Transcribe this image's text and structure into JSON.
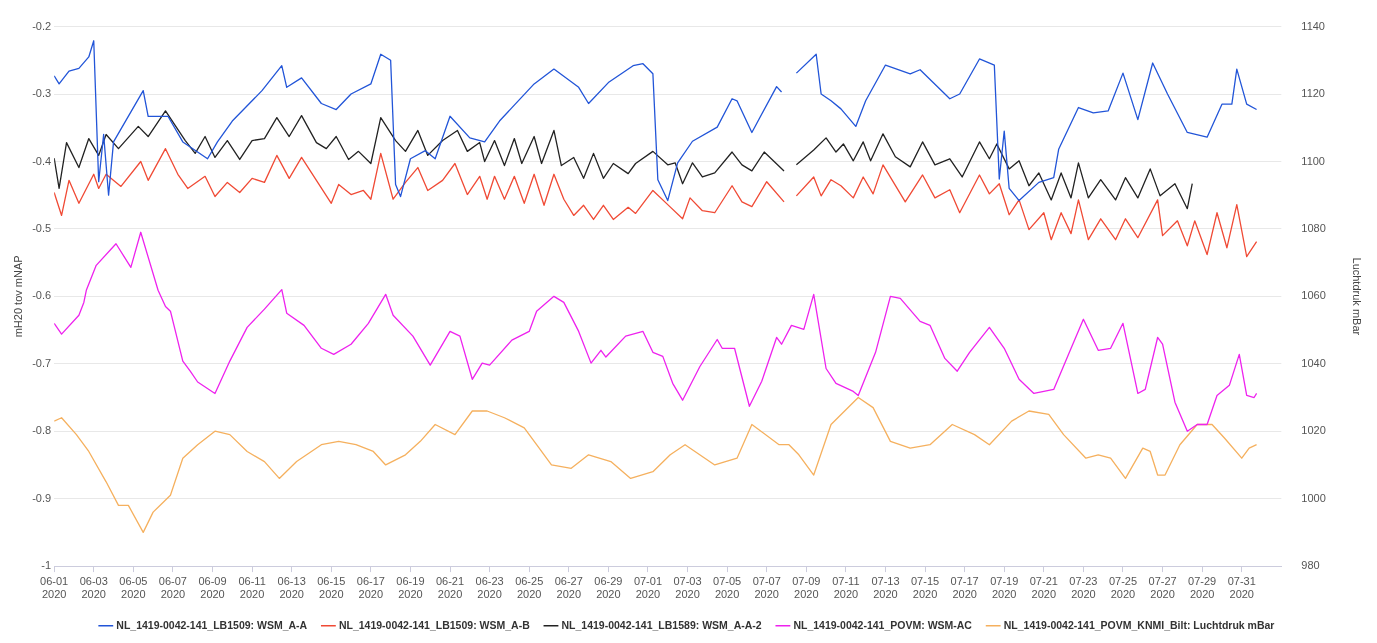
{
  "chart_data": {
    "type": "line",
    "ylabel": "mH20 tov mNAP",
    "y2label": "Luchtdruk mBar",
    "xlim": [
      "2020-06-01",
      "2020-08-02"
    ],
    "xticks": [
      {
        "value": "2020-06-01",
        "label": "06-01\n2020"
      },
      {
        "value": "2020-06-03",
        "label": "06-03\n2020"
      },
      {
        "value": "2020-06-05",
        "label": "06-05\n2020"
      },
      {
        "value": "2020-06-07",
        "label": "06-07\n2020"
      },
      {
        "value": "2020-06-09",
        "label": "06-09\n2020"
      },
      {
        "value": "2020-06-11",
        "label": "06-11\n2020"
      },
      {
        "value": "2020-06-13",
        "label": "06-13\n2020"
      },
      {
        "value": "2020-06-15",
        "label": "06-15\n2020"
      },
      {
        "value": "2020-06-17",
        "label": "06-17\n2020"
      },
      {
        "value": "2020-06-19",
        "label": "06-19\n2020"
      },
      {
        "value": "2020-06-21",
        "label": "06-21\n2020"
      },
      {
        "value": "2020-06-23",
        "label": "06-23\n2020"
      },
      {
        "value": "2020-06-25",
        "label": "06-25\n2020"
      },
      {
        "value": "2020-06-27",
        "label": "06-27\n2020"
      },
      {
        "value": "2020-06-29",
        "label": "06-29\n2020"
      },
      {
        "value": "2020-07-01",
        "label": "07-01\n2020"
      },
      {
        "value": "2020-07-03",
        "label": "07-03\n2020"
      },
      {
        "value": "2020-07-05",
        "label": "07-05\n2020"
      },
      {
        "value": "2020-07-07",
        "label": "07-07\n2020"
      },
      {
        "value": "2020-07-09",
        "label": "07-09\n2020"
      },
      {
        "value": "2020-07-11",
        "label": "07-11\n2020"
      },
      {
        "value": "2020-07-13",
        "label": "07-13\n2020"
      },
      {
        "value": "2020-07-15",
        "label": "07-15\n2020"
      },
      {
        "value": "2020-07-17",
        "label": "07-17\n2020"
      },
      {
        "value": "2020-07-19",
        "label": "07-19\n2020"
      },
      {
        "value": "2020-07-21",
        "label": "07-21\n2020"
      },
      {
        "value": "2020-07-23",
        "label": "07-23\n2020"
      },
      {
        "value": "2020-07-25",
        "label": "07-25\n2020"
      },
      {
        "value": "2020-07-27",
        "label": "07-27\n2020"
      },
      {
        "value": "2020-07-29",
        "label": "07-29\n2020"
      },
      {
        "value": "2020-07-31",
        "label": "07-31\n2020"
      }
    ],
    "ylim": [
      -1,
      -0.2
    ],
    "yticks": [
      -1,
      -0.9,
      -0.8,
      -0.7,
      -0.6,
      -0.5,
      -0.4,
      -0.3,
      -0.2
    ],
    "y2lim": [
      980,
      1140
    ],
    "y2ticks": [
      980,
      1000,
      1020,
      1040,
      1060,
      1080,
      1100,
      1120,
      1140
    ],
    "grid": "y",
    "legend": "bottom",
    "marker": "none",
    "line_style": "solid",
    "series": [
      {
        "name": "NL_1419-0042-141_LB1509: WSM_A-A",
        "color": "#2255d8",
        "x": [
          "2020-06-01T00:00",
          "2020-06-01T06:00",
          "2020-06-01T18:00",
          "2020-06-02T06:00",
          "2020-06-02T18:00",
          "2020-06-03T00:00",
          "2020-06-03T06:00",
          "2020-06-03T12:00",
          "2020-06-03T18:00",
          "2020-06-04T00:00",
          "2020-06-05T12:00",
          "2020-06-05T18:00",
          "2020-06-06T18:00",
          "2020-06-07T12:00",
          "2020-06-08T18:00",
          "2020-06-09T06:00",
          "2020-06-10T00:00",
          "2020-06-11T12:00",
          "2020-06-12T12:00",
          "2020-06-12T18:00",
          "2020-06-13T12:00",
          "2020-06-14T12:00",
          "2020-06-15T06:00",
          "2020-06-16T00:00",
          "2020-06-17T00:00",
          "2020-06-17T12:00",
          "2020-06-18T00:00",
          "2020-06-18T06:00",
          "2020-06-18T12:00",
          "2020-06-19T00:00",
          "2020-06-19T18:00",
          "2020-06-20T06:00",
          "2020-06-21T00:00",
          "2020-06-22T00:00",
          "2020-06-22T18:00",
          "2020-06-23T12:00",
          "2020-06-25T06:00",
          "2020-06-26T06:00",
          "2020-06-27T12:00",
          "2020-06-28T00:00",
          "2020-06-29T00:00",
          "2020-06-30T06:00",
          "2020-06-30T18:00",
          "2020-07-01T06:00",
          "2020-07-01T12:00",
          "2020-07-02T00:00",
          "2020-07-02T12:00",
          "2020-07-03T06:00",
          "2020-07-04T12:00",
          "2020-07-05T06:00",
          "2020-07-05T12:00",
          "2020-07-06T06:00",
          "2020-07-07T12:00",
          "2020-07-07T18:00",
          "2020-07-08T00:00",
          "2020-07-08T12:00",
          "2020-07-09T12:00",
          "2020-07-09T18:00",
          "2020-07-10T06:00",
          "2020-07-10T18:00",
          "2020-07-11T12:00",
          "2020-07-12T00:00",
          "2020-07-13T00:00",
          "2020-07-14T06:00",
          "2020-07-14T18:00",
          "2020-07-16T06:00",
          "2020-07-16T18:00",
          "2020-07-17T18:00",
          "2020-07-18T12:00",
          "2020-07-18T18:00",
          "2020-07-19T00:00",
          "2020-07-19T06:00",
          "2020-07-19T18:00",
          "2020-07-20T18:00",
          "2020-07-21T12:00",
          "2020-07-21T18:00",
          "2020-07-22T18:00",
          "2020-07-23T12:00",
          "2020-07-24T06:00",
          "2020-07-25T00:00",
          "2020-07-25T18:00",
          "2020-07-26T12:00",
          "2020-07-27T06:00",
          "2020-07-28T06:00",
          "2020-07-29T06:00",
          "2020-07-30T00:00",
          "2020-07-30T12:00",
          "2020-07-30T18:00",
          "2020-07-31T06:00",
          "2020-07-31T18:00"
        ],
        "values": [
          -0.273,
          -0.285,
          -0.266,
          -0.262,
          -0.245,
          -0.221,
          -0.43,
          -0.36,
          -0.45,
          -0.371,
          -0.295,
          -0.333,
          -0.333,
          -0.371,
          -0.396,
          -0.371,
          -0.34,
          -0.295,
          -0.258,
          -0.29,
          -0.276,
          -0.314,
          -0.323,
          -0.3,
          -0.285,
          -0.241,
          -0.25,
          -0.434,
          -0.452,
          -0.396,
          -0.384,
          -0.396,
          -0.333,
          -0.365,
          -0.371,
          -0.34,
          -0.285,
          -0.263,
          -0.29,
          -0.314,
          -0.283,
          -0.258,
          -0.255,
          -0.27,
          -0.427,
          -0.458,
          -0.402,
          -0.37,
          -0.349,
          -0.307,
          -0.31,
          -0.357,
          -0.289,
          -0.297,
          null,
          -0.269,
          -0.241,
          -0.3,
          -0.31,
          -0.322,
          -0.348,
          -0.31,
          -0.257,
          -0.27,
          -0.264,
          -0.307,
          -0.3,
          -0.248,
          -0.257,
          -0.426,
          -0.355,
          -0.44,
          -0.458,
          -0.431,
          -0.424,
          -0.382,
          -0.32,
          -0.328,
          -0.325,
          -0.269,
          -0.338,
          -0.254,
          -0.3,
          -0.357,
          -0.364,
          -0.315,
          -0.315,
          -0.263,
          -0.315,
          -0.323
        ]
      },
      {
        "name": "NL_1419-0042-141_LB1509: WSM_A-B",
        "color": "#f04a35",
        "x": [
          "2020-06-01T00:00",
          "2020-06-01T09:00",
          "2020-06-01T18:00",
          "2020-06-02T06:00",
          "2020-06-03T00:00",
          "2020-06-03T06:00",
          "2020-06-03T15:00",
          "2020-06-04T09:00",
          "2020-06-05T09:00",
          "2020-06-05T18:00",
          "2020-06-06T15:00",
          "2020-06-07T06:00",
          "2020-06-07T18:00",
          "2020-06-08T15:00",
          "2020-06-09T03:00",
          "2020-06-09T18:00",
          "2020-06-10T09:00",
          "2020-06-11T00:00",
          "2020-06-11T15:00",
          "2020-06-12T06:00",
          "2020-06-12T21:00",
          "2020-06-13T12:00",
          "2020-06-14T06:00",
          "2020-06-15T00:00",
          "2020-06-15T09:00",
          "2020-06-16T00:00",
          "2020-06-16T15:00",
          "2020-06-17T00:00",
          "2020-06-17T12:00",
          "2020-06-18T03:00",
          "2020-06-18T18:00",
          "2020-06-19T09:00",
          "2020-06-19T21:00",
          "2020-06-20T15:00",
          "2020-06-21T06:00",
          "2020-06-21T21:00",
          "2020-06-22T12:00",
          "2020-06-22T21:00",
          "2020-06-23T06:00",
          "2020-06-23T18:00",
          "2020-06-24T06:00",
          "2020-06-24T18:00",
          "2020-06-25T06:00",
          "2020-06-25T18:00",
          "2020-06-26T06:00",
          "2020-06-26T18:00",
          "2020-06-27T06:00",
          "2020-06-27T18:00",
          "2020-06-28T06:00",
          "2020-06-28T18:00",
          "2020-06-29T06:00",
          "2020-06-30T00:00",
          "2020-06-30T09:00",
          "2020-07-01T06:00",
          "2020-07-02T00:00",
          "2020-07-02T18:00",
          "2020-07-03T03:00",
          "2020-07-03T18:00",
          "2020-07-04T09:00",
          "2020-07-05T06:00",
          "2020-07-05T18:00",
          "2020-07-06T06:00",
          "2020-07-07T00:00",
          "2020-07-07T21:00",
          "2020-07-08T03:00",
          "2020-07-08T12:00",
          "2020-07-09T09:00",
          "2020-07-09T18:00",
          "2020-07-10T06:00",
          "2020-07-10T18:00",
          "2020-07-11T09:00",
          "2020-07-11T21:00",
          "2020-07-12T09:00",
          "2020-07-12T21:00",
          "2020-07-14T00:00",
          "2020-07-14T21:00",
          "2020-07-15T12:00",
          "2020-07-16T06:00",
          "2020-07-16T18:00",
          "2020-07-17T18:00",
          "2020-07-18T06:00",
          "2020-07-18T18:00",
          "2020-07-19T06:00",
          "2020-07-19T18:00",
          "2020-07-20T06:00",
          "2020-07-21T00:00",
          "2020-07-21T09:00",
          "2020-07-21T21:00",
          "2020-07-22T09:00",
          "2020-07-22T18:00",
          "2020-07-23T06:00",
          "2020-07-23T21:00",
          "2020-07-24T15:00",
          "2020-07-25T03:00",
          "2020-07-25T18:00",
          "2020-07-26T18:00",
          "2020-07-27T00:00",
          "2020-07-27T18:00",
          "2020-07-28T06:00",
          "2020-07-28T15:00",
          "2020-07-29T06:00",
          "2020-07-29T18:00",
          "2020-07-30T06:00",
          "2020-07-30T18:00",
          "2020-07-31T06:00",
          "2020-07-31T18:00"
        ],
        "values": [
          -0.446,
          -0.48,
          -0.428,
          -0.462,
          -0.419,
          -0.44,
          -0.419,
          -0.437,
          -0.4,
          -0.428,
          -0.381,
          -0.419,
          -0.44,
          -0.422,
          -0.452,
          -0.431,
          -0.446,
          -0.425,
          -0.431,
          -0.391,
          -0.425,
          -0.394,
          -0.428,
          -0.462,
          -0.434,
          -0.449,
          -0.443,
          -0.456,
          -0.388,
          -0.456,
          -0.431,
          -0.409,
          -0.443,
          -0.428,
          -0.403,
          -0.449,
          -0.422,
          -0.456,
          -0.422,
          -0.456,
          -0.422,
          -0.462,
          -0.419,
          -0.465,
          -0.419,
          -0.456,
          -0.48,
          -0.465,
          -0.486,
          -0.465,
          -0.486,
          -0.468,
          -0.477,
          -0.443,
          -0.464,
          -0.485,
          -0.454,
          -0.473,
          -0.476,
          -0.436,
          -0.46,
          -0.467,
          -0.43,
          -0.46,
          null,
          -0.451,
          -0.423,
          -0.451,
          -0.427,
          -0.436,
          -0.454,
          -0.423,
          -0.448,
          -0.405,
          -0.46,
          -0.42,
          -0.454,
          -0.442,
          -0.476,
          -0.42,
          -0.448,
          -0.433,
          -0.479,
          -0.457,
          -0.501,
          -0.476,
          -0.516,
          -0.476,
          -0.507,
          -0.457,
          -0.516,
          -0.485,
          -0.516,
          -0.485,
          -0.513,
          -0.457,
          -0.51,
          -0.488,
          -0.525,
          -0.488,
          -0.538,
          -0.476,
          -0.528,
          -0.464,
          -0.541,
          -0.519
        ]
      },
      {
        "name": "NL_1419-0042-141_LB1589: WSM_A-A-2",
        "color": "#222222",
        "x": [
          "2020-06-01T00:00",
          "2020-06-01T06:00",
          "2020-06-01T15:00",
          "2020-06-02T06:00",
          "2020-06-02T18:00",
          "2020-06-03T06:00",
          "2020-06-03T15:00",
          "2020-06-04T06:00",
          "2020-06-05T06:00",
          "2020-06-05T18:00",
          "2020-06-06T15:00",
          "2020-06-07T15:00",
          "2020-06-08T03:00",
          "2020-06-08T15:00",
          "2020-06-09T03:00",
          "2020-06-09T18:00",
          "2020-06-10T09:00",
          "2020-06-11T00:00",
          "2020-06-11T15:00",
          "2020-06-12T06:00",
          "2020-06-12T21:00",
          "2020-06-13T12:00",
          "2020-06-14T06:00",
          "2020-06-14T18:00",
          "2020-06-15T06:00",
          "2020-06-15T21:00",
          "2020-06-16T09:00",
          "2020-06-17T00:00",
          "2020-06-17T12:00",
          "2020-06-18T06:00",
          "2020-06-18T18:00",
          "2020-06-19T09:00",
          "2020-06-19T21:00",
          "2020-06-20T15:00",
          "2020-06-21T09:00",
          "2020-06-21T21:00",
          "2020-06-22T12:00",
          "2020-06-22T18:00",
          "2020-06-23T06:00",
          "2020-06-23T18:00",
          "2020-06-24T06:00",
          "2020-06-24T15:00",
          "2020-06-25T06:00",
          "2020-06-25T15:00",
          "2020-06-26T06:00",
          "2020-06-26T15:00",
          "2020-06-27T06:00",
          "2020-06-27T18:00",
          "2020-06-28T06:00",
          "2020-06-28T18:00",
          "2020-06-29T06:00",
          "2020-06-30T00:00",
          "2020-06-30T09:00",
          "2020-07-01T06:00",
          "2020-07-02T00:00",
          "2020-07-02T09:00",
          "2020-07-02T18:00",
          "2020-07-03T06:00",
          "2020-07-03T18:00",
          "2020-07-04T09:00",
          "2020-07-05T06:00",
          "2020-07-05T18:00",
          "2020-07-06T06:00",
          "2020-07-06T21:00",
          "2020-07-07T21:00",
          "2020-07-08T03:00",
          "2020-07-08T12:00",
          "2020-07-09T09:00",
          "2020-07-10T00:00",
          "2020-07-10T12:00",
          "2020-07-10T21:00",
          "2020-07-11T09:00",
          "2020-07-11T21:00",
          "2020-07-12T06:00",
          "2020-07-12T21:00",
          "2020-07-13T12:00",
          "2020-07-14T06:00",
          "2020-07-14T21:00",
          "2020-07-15T12:00",
          "2020-07-16T06:00",
          "2020-07-16T21:00",
          "2020-07-17T18:00",
          "2020-07-18T06:00",
          "2020-07-18T15:00",
          "2020-07-19T06:00",
          "2020-07-19T18:00",
          "2020-07-20T06:00",
          "2020-07-20T18:00",
          "2020-07-21T09:00",
          "2020-07-21T21:00",
          "2020-07-22T09:00",
          "2020-07-22T18:00",
          "2020-07-23T06:00",
          "2020-07-23T21:00",
          "2020-07-24T15:00",
          "2020-07-25T03:00",
          "2020-07-25T18:00",
          "2020-07-26T09:00",
          "2020-07-26T21:00",
          "2020-07-27T15:00",
          "2020-07-28T06:00",
          "2020-07-28T12:00"
        ],
        "values": [
          -0.395,
          -0.44,
          -0.372,
          -0.409,
          -0.366,
          -0.391,
          -0.36,
          -0.381,
          -0.348,
          -0.363,
          -0.325,
          -0.369,
          -0.388,
          -0.363,
          -0.394,
          -0.369,
          -0.397,
          -0.369,
          -0.366,
          -0.335,
          -0.363,
          -0.332,
          -0.372,
          -0.381,
          -0.363,
          -0.397,
          -0.385,
          -0.403,
          -0.335,
          -0.369,
          -0.385,
          -0.354,
          -0.391,
          -0.369,
          -0.354,
          -0.385,
          -0.372,
          -0.4,
          -0.369,
          -0.406,
          -0.366,
          -0.403,
          -0.363,
          -0.403,
          -0.354,
          -0.406,
          -0.394,
          -0.425,
          -0.388,
          -0.425,
          -0.403,
          -0.418,
          -0.403,
          -0.385,
          -0.405,
          -0.402,
          -0.433,
          -0.402,
          -0.423,
          -0.417,
          -0.386,
          -0.405,
          -0.414,
          -0.386,
          -0.414,
          null,
          -0.405,
          -0.383,
          -0.365,
          -0.386,
          -0.374,
          -0.399,
          -0.371,
          -0.399,
          -0.359,
          -0.393,
          -0.408,
          -0.371,
          -0.405,
          -0.396,
          -0.423,
          -0.371,
          -0.396,
          -0.374,
          -0.411,
          -0.399,
          -0.436,
          -0.417,
          -0.457,
          -0.417,
          -0.454,
          -0.402,
          -0.454,
          -0.427,
          -0.457,
          -0.424,
          -0.454,
          -0.411,
          -0.451,
          -0.433,
          -0.47,
          -0.433
        ]
      },
      {
        "name": "NL_1419-0042-141_POVM: WSM-AC",
        "color": "#ee22ee",
        "x": [
          "2020-06-01T00:00",
          "2020-06-01T09:00",
          "2020-06-02T06:00",
          "2020-06-02T12:00",
          "2020-06-02T15:00",
          "2020-06-03T03:00",
          "2020-06-04T03:00",
          "2020-06-04T21:00",
          "2020-06-05T09:00",
          "2020-06-06T06:00",
          "2020-06-06T15:00",
          "2020-06-06T21:00",
          "2020-06-07T12:00",
          "2020-06-07T21:00",
          "2020-06-08T06:00",
          "2020-06-09T03:00",
          "2020-06-09T21:00",
          "2020-06-10T18:00",
          "2020-06-11T15:00",
          "2020-06-12T12:00",
          "2020-06-12T18:00",
          "2020-06-13T15:00",
          "2020-06-14T12:00",
          "2020-06-15T03:00",
          "2020-06-16T00:00",
          "2020-06-16T21:00",
          "2020-06-17T18:00",
          "2020-06-18T03:00",
          "2020-06-19T03:00",
          "2020-06-20T00:00",
          "2020-06-21T00:00",
          "2020-06-21T12:00",
          "2020-06-22T03:00",
          "2020-06-22T15:00",
          "2020-06-23T00:00",
          "2020-06-24T03:00",
          "2020-06-25T00:00",
          "2020-06-25T09:00",
          "2020-06-26T06:00",
          "2020-06-26T18:00",
          "2020-06-27T12:00",
          "2020-06-28T03:00",
          "2020-06-28T15:00",
          "2020-06-28T21:00",
          "2020-06-29T21:00",
          "2020-06-30T18:00",
          "2020-07-01T06:00",
          "2020-07-01T18:00",
          "2020-07-02T06:00",
          "2020-07-02T18:00",
          "2020-07-03T15:00",
          "2020-07-04T12:00",
          "2020-07-04T18:00",
          "2020-07-05T09:00",
          "2020-07-06T03:00",
          "2020-07-06T18:00",
          "2020-07-07T12:00",
          "2020-07-07T18:00",
          "2020-07-08T06:00",
          "2020-07-08T21:00",
          "2020-07-09T09:00",
          "2020-07-10T00:00",
          "2020-07-10T12:00",
          "2020-07-11T09:00",
          "2020-07-11T15:00",
          "2020-07-12T12:00",
          "2020-07-13T06:00",
          "2020-07-13T18:00",
          "2020-07-14T18:00",
          "2020-07-15T06:00",
          "2020-07-16T00:00",
          "2020-07-16T15:00",
          "2020-07-17T06:00",
          "2020-07-18T06:00",
          "2020-07-19T00:00",
          "2020-07-19T18:00",
          "2020-07-20T12:00",
          "2020-07-21T12:00",
          "2020-07-22T06:00",
          "2020-07-23T00:00",
          "2020-07-23T18:00",
          "2020-07-24T09:00",
          "2020-07-25T00:00",
          "2020-07-25T18:00",
          "2020-07-26T03:00",
          "2020-07-26T18:00",
          "2020-07-27T00:00",
          "2020-07-27T15:00",
          "2020-07-28T06:00",
          "2020-07-28T18:00",
          "2020-07-29T06:00",
          "2020-07-29T18:00",
          "2020-07-30T09:00",
          "2020-07-30T21:00",
          "2020-07-31T06:00",
          "2020-07-31T15:00",
          "2020-07-31T18:00"
        ],
        "values": [
          -0.64,
          -0.656,
          -0.628,
          -0.609,
          -0.591,
          -0.554,
          -0.522,
          -0.557,
          -0.505,
          -0.591,
          -0.615,
          -0.622,
          -0.696,
          -0.711,
          -0.727,
          -0.744,
          -0.696,
          -0.646,
          -0.619,
          -0.59,
          -0.625,
          -0.643,
          -0.677,
          -0.686,
          -0.671,
          -0.64,
          -0.597,
          -0.628,
          -0.659,
          -0.702,
          -0.652,
          -0.659,
          -0.723,
          -0.699,
          -0.702,
          -0.665,
          -0.652,
          -0.622,
          -0.6,
          -0.609,
          -0.652,
          -0.699,
          -0.68,
          -0.69,
          -0.659,
          -0.652,
          -0.683,
          -0.689,
          -0.729,
          -0.754,
          -0.704,
          -0.664,
          -0.677,
          -0.677,
          -0.763,
          -0.726,
          -0.661,
          -0.671,
          -0.643,
          -0.649,
          -0.597,
          -0.707,
          -0.729,
          -0.741,
          -0.747,
          -0.683,
          -0.6,
          -0.603,
          -0.637,
          -0.643,
          -0.692,
          -0.711,
          -0.683,
          -0.646,
          -0.677,
          -0.723,
          -0.744,
          -0.738,
          -0.686,
          -0.634,
          -0.68,
          -0.677,
          -0.64,
          -0.744,
          -0.738,
          -0.661,
          -0.671,
          -0.757,
          -0.8,
          -0.79,
          -0.79,
          -0.747,
          -0.732,
          -0.686,
          -0.747,
          -0.75,
          -0.744
        ]
      },
      {
        "name": "NL_1419-0042-141_POVM_KNMI_Bilt: Luchtdruk mBar",
        "color": "#f5b05e",
        "axis": "y2",
        "x": [
          "2020-06-01T00:00",
          "2020-06-01T09:00",
          "2020-06-02T03:00",
          "2020-06-02T18:00",
          "2020-06-03T15:00",
          "2020-06-04T06:00",
          "2020-06-04T18:00",
          "2020-06-05T12:00",
          "2020-06-06T00:00",
          "2020-06-06T21:00",
          "2020-06-07T12:00",
          "2020-06-08T06:00",
          "2020-06-09T03:00",
          "2020-06-09T21:00",
          "2020-06-10T18:00",
          "2020-06-11T15:00",
          "2020-06-12T09:00",
          "2020-06-13T06:00",
          "2020-06-14T12:00",
          "2020-06-15T09:00",
          "2020-06-16T06:00",
          "2020-06-17T03:00",
          "2020-06-17T18:00",
          "2020-06-18T18:00",
          "2020-06-19T12:00",
          "2020-06-20T06:00",
          "2020-06-21T06:00",
          "2020-06-22T03:00",
          "2020-06-22T21:00",
          "2020-06-23T18:00",
          "2020-06-24T18:00",
          "2020-06-25T09:00",
          "2020-06-26T03:00",
          "2020-06-27T03:00",
          "2020-06-28T00:00",
          "2020-06-29T03:00",
          "2020-06-30T03:00",
          "2020-07-01T06:00",
          "2020-07-02T03:00",
          "2020-07-02T21:00",
          "2020-07-04T09:00",
          "2020-07-05T12:00",
          "2020-07-06T06:00",
          "2020-07-07T15:00",
          "2020-07-08T03:00",
          "2020-07-08T15:00",
          "2020-07-09T09:00",
          "2020-07-10T06:00",
          "2020-07-11T15:00",
          "2020-07-12T09:00",
          "2020-07-13T06:00",
          "2020-07-14T06:00",
          "2020-07-15T06:00",
          "2020-07-16T09:00",
          "2020-07-17T12:00",
          "2020-07-18T06:00",
          "2020-07-19T09:00",
          "2020-07-20T06:00",
          "2020-07-21T06:00",
          "2020-07-22T00:00",
          "2020-07-23T03:00",
          "2020-07-23T18:00",
          "2020-07-24T09:00",
          "2020-07-25T03:00",
          "2020-07-26T00:00",
          "2020-07-26T09:00",
          "2020-07-26T18:00",
          "2020-07-27T03:00",
          "2020-07-27T21:00",
          "2020-07-28T18:00",
          "2020-07-29T12:00",
          "2020-07-30T03:00",
          "2020-07-31T00:00",
          "2020-07-31T09:00",
          "2020-07-31T18:00"
        ],
        "values": [
          1023,
          1024,
          1019,
          1014,
          1005,
          998,
          998,
          990,
          996,
          1001,
          1012,
          1016,
          1020,
          1019,
          1014,
          1011,
          1006,
          1011,
          1016,
          1017,
          1016,
          1014,
          1010,
          1013,
          1017,
          1022,
          1019,
          1026,
          1026,
          1024,
          1021,
          1016,
          1010,
          1009,
          1013,
          1011,
          1006,
          1008,
          1013,
          1016,
          1010,
          1012,
          1022,
          1016,
          1016,
          1013,
          1007,
          1022,
          1030,
          1027,
          1017,
          1015,
          1016,
          1022,
          1019,
          1016,
          1023,
          1026,
          1025,
          1019,
          1012,
          1013,
          1012,
          1006,
          1015,
          1014,
          1007,
          1007,
          1016,
          1022,
          1022,
          1018,
          1012,
          1015,
          1016
        ]
      }
    ]
  }
}
